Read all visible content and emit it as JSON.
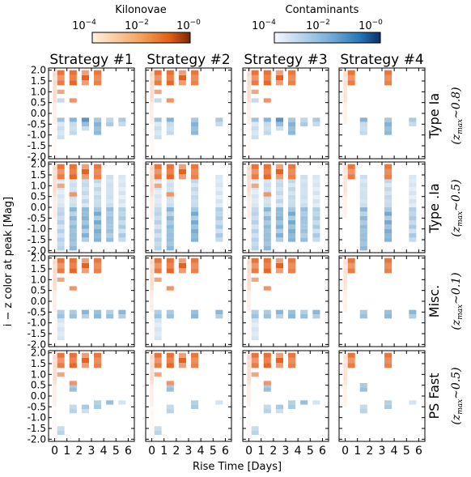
{
  "colorbars": [
    {
      "label": "Kilonovae",
      "ticks": [
        "10",
        "10",
        "10"
      ],
      "exponents": [
        "−4",
        "−2",
        "−0"
      ],
      "colors": [
        "#fde3c8",
        "#f08a3c",
        "#8c2d04"
      ]
    },
    {
      "label": "Contaminants",
      "ticks": [
        "10",
        "10",
        "10"
      ],
      "exponents": [
        "−4",
        "−2",
        "−0"
      ],
      "colors": [
        "#eaf2fb",
        "#5a9fd0",
        "#08306b"
      ]
    }
  ],
  "columns": [
    "Strategy #1",
    "Strategy #2",
    "Strategy #3",
    "Strategy #4"
  ],
  "rows": [
    {
      "label": "Type Ia",
      "zmax": "(z",
      "zsub": "max",
      "zval": "∼0.8)"
    },
    {
      "label": "Type .Ia",
      "zmax": "(z",
      "zsub": "max",
      "zval": "∼0.5)"
    },
    {
      "label": "Misc.",
      "zmax": "(z",
      "zsub": "max",
      "zval": "∼0.1)"
    },
    {
      "label": "PS Fast",
      "zmax": "(z",
      "zsub": "max",
      "zval": "∼0.5)"
    }
  ],
  "ylabel": "i − z color at peak [Mag]",
  "xlabel": "Rise Time [Days]",
  "yticks": [
    "2.0",
    "1.5",
    "1.0",
    "0.5",
    "0.0",
    "-0.5",
    "-1.0",
    "-1.5",
    "-2.0"
  ],
  "xticks": [
    "0",
    "1",
    "2",
    "3",
    "4",
    "5",
    "6"
  ],
  "chart_data": {
    "type": "heatmap",
    "x_range": [
      0,
      7
    ],
    "y_range": [
      -2.1,
      2.1
    ],
    "bin_width_x": 0.5,
    "bin_height_y": 0.2,
    "kilonova_color": "#e8601c",
    "contaminant_color": "#2c7bb6",
    "kilonovae": {
      "full": [
        [
          [
            0.5,
            0.5,
            [
              [
                0.5,
                2.1,
                0.25
              ],
              [
                -0.5,
                0.5,
                0.12
              ],
              [
                -2.0,
                -0.5,
                0.05
              ]
            ]
          ],
          [
            1,
            1,
            [
              [
                1.3,
                2.0,
                0.9
              ],
              [
                0.9,
                1.1,
                0.6
              ]
            ]
          ],
          [
            2,
            1,
            [
              [
                1.3,
                2.0,
                1.0
              ],
              [
                0.5,
                0.7,
                0.7
              ]
            ]
          ],
          [
            3,
            1,
            [
              [
                1.3,
                2.0,
                1.0
              ]
            ]
          ],
          [
            4,
            1,
            [
              [
                1.3,
                2.0,
                0.9
              ]
            ]
          ]
        ],
        [
          [
            0.5,
            0.5,
            [
              [
                0.5,
                2.1,
                0.25
              ],
              [
                -0.5,
                0.5,
                0.12
              ],
              [
                -2.0,
                -0.5,
                0.05
              ]
            ]
          ],
          [
            1,
            1,
            [
              [
                1.3,
                2.0,
                0.9
              ],
              [
                0.9,
                1.1,
                0.6
              ]
            ]
          ],
          [
            2,
            1,
            [
              [
                1.3,
                2.0,
                1.0
              ],
              [
                0.5,
                0.7,
                0.7
              ]
            ]
          ],
          [
            3,
            1,
            [
              [
                1.3,
                2.0,
                1.0
              ]
            ]
          ],
          [
            4,
            1,
            [
              [
                1.3,
                2.0,
                0.9
              ]
            ]
          ]
        ],
        [
          [
            0.5,
            0.5,
            [
              [
                0.5,
                2.1,
                0.25
              ],
              [
                -0.5,
                0.5,
                0.12
              ],
              [
                -2.0,
                -0.5,
                0.05
              ]
            ]
          ],
          [
            1,
            1,
            [
              [
                1.3,
                2.0,
                0.9
              ],
              [
                0.9,
                1.1,
                0.6
              ]
            ]
          ],
          [
            2,
            1,
            [
              [
                1.3,
                2.0,
                1.0
              ],
              [
                0.5,
                0.7,
                0.7
              ]
            ]
          ],
          [
            3,
            1,
            [
              [
                1.3,
                2.0,
                1.0
              ]
            ]
          ],
          [
            4,
            1,
            [
              [
                1.3,
                2.0,
                0.9
              ]
            ]
          ]
        ],
        [
          [
            0.5,
            0.5,
            [
              [
                0.5,
                2.1,
                0.2
              ],
              [
                -0.5,
                0.5,
                0.1
              ]
            ]
          ],
          [
            1,
            1,
            [
              [
                1.3,
                2.0,
                0.9
              ]
            ]
          ],
          [
            4,
            1,
            [
              [
                1.3,
                2.0,
                0.9
              ]
            ]
          ]
        ]
      ]
    },
    "contaminants": [
      [
        [
          1,
          1,
          [
            [
              -0.4,
              -0.2,
              0.5
            ],
            [
              0.5,
              0.7,
              0.3
            ],
            [
              -1.2,
              -0.4,
              0.25
            ]
          ]
        ],
        [
          2,
          1,
          [
            [
              -0.4,
              -0.2,
              0.6
            ],
            [
              -1.0,
              -0.4,
              0.3
            ]
          ]
        ],
        [
          3,
          1,
          [
            [
              -0.6,
              -0.2,
              0.8
            ],
            [
              -0.8,
              -0.6,
              0.4
            ]
          ]
        ],
        [
          4,
          1,
          [
            [
              -1.0,
              -0.2,
              0.6
            ]
          ]
        ],
        [
          5,
          1,
          [
            [
              -0.6,
              -0.2,
              0.4
            ]
          ]
        ],
        [
          6,
          1,
          [
            [
              -0.6,
              -0.2,
              0.4
            ]
          ]
        ]
      ],
      [
        [
          1,
          1,
          [
            [
              0.0,
              2.0,
              0.2
            ],
            [
              -2.0,
              0.0,
              0.35
            ]
          ]
        ],
        [
          2,
          1,
          [
            [
              0.0,
              1.5,
              0.25
            ],
            [
              -2.0,
              0.0,
              0.55
            ]
          ]
        ],
        [
          3,
          1,
          [
            [
              0.0,
              1.5,
              0.3
            ],
            [
              -1.6,
              0.0,
              0.6
            ]
          ]
        ],
        [
          4,
          1,
          [
            [
              0.0,
              1.5,
              0.3
            ],
            [
              -1.6,
              0.0,
              0.65
            ]
          ]
        ],
        [
          5,
          1,
          [
            [
              0.0,
              1.5,
              0.25
            ],
            [
              -1.6,
              0.0,
              0.5
            ]
          ]
        ],
        [
          6,
          1,
          [
            [
              0.0,
              1.5,
              0.2
            ],
            [
              -1.6,
              0.0,
              0.4
            ]
          ]
        ]
      ],
      [
        [
          1,
          1,
          [
            [
              -0.8,
              -0.4,
              0.5
            ],
            [
              -1.8,
              -0.8,
              0.2
            ]
          ]
        ],
        [
          2,
          1,
          [
            [
              -0.8,
              -0.4,
              0.5
            ]
          ]
        ],
        [
          3,
          1,
          [
            [
              -0.8,
              -0.4,
              0.55
            ]
          ]
        ],
        [
          4,
          1,
          [
            [
              -0.8,
              -0.4,
              0.6
            ]
          ]
        ],
        [
          5,
          1,
          [
            [
              -0.8,
              -0.4,
              0.5
            ]
          ]
        ],
        [
          6,
          1,
          [
            [
              -0.8,
              -0.4,
              0.55
            ]
          ]
        ]
      ],
      [
        [
          1,
          1,
          [
            [
              -1.8,
              -1.4,
              0.35
            ]
          ]
        ],
        [
          2,
          1,
          [
            [
              0.2,
              0.6,
              0.5
            ],
            [
              -0.8,
              -0.4,
              0.35
            ]
          ]
        ],
        [
          3,
          1,
          [
            [
              -0.8,
              -0.4,
              0.4
            ]
          ]
        ],
        [
          4,
          1,
          [
            [
              -0.6,
              -0.2,
              0.45
            ]
          ]
        ],
        [
          5,
          1,
          [
            [
              -0.4,
              -0.2,
              0.5
            ]
          ]
        ],
        [
          6,
          1,
          [
            [
              -0.4,
              -0.2,
              0.3
            ]
          ]
        ]
      ]
    ]
  }
}
